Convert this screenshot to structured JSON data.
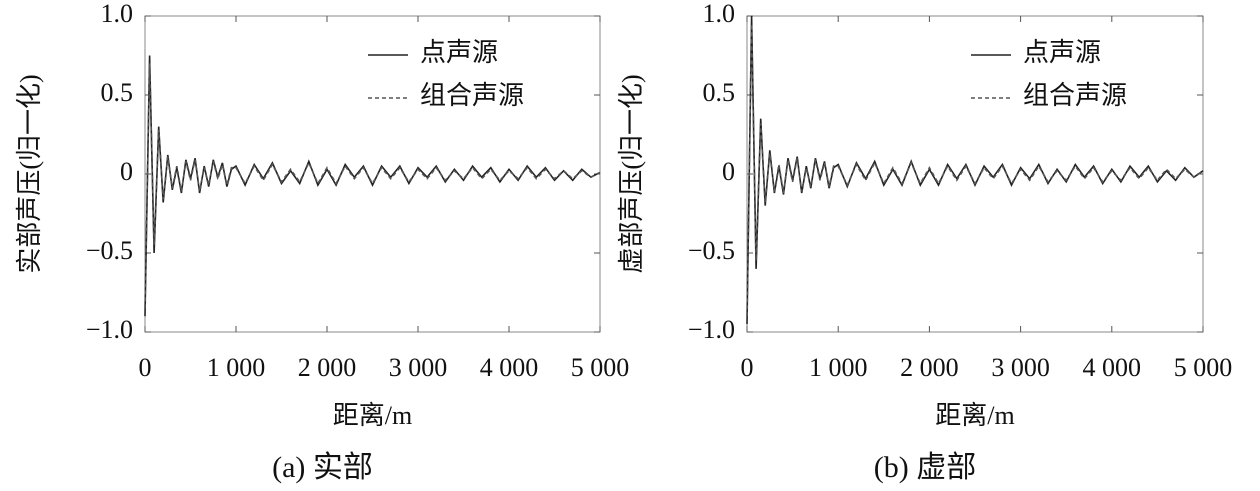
{
  "chart_data": [
    {
      "type": "line",
      "title": "(a) 实部",
      "xlabel": "距离/m",
      "ylabel": "实部声压(归一化)",
      "legend": "upper right",
      "x": [
        0,
        50,
        100,
        150,
        200,
        250,
        300,
        350,
        400,
        450,
        500,
        550,
        600,
        650,
        700,
        750,
        800,
        850,
        900,
        950,
        1000,
        1100,
        1200,
        1300,
        1400,
        1500,
        1600,
        1700,
        1800,
        1900,
        2000,
        2100,
        2200,
        2300,
        2400,
        2500,
        2600,
        2700,
        2800,
        2900,
        3000,
        3100,
        3200,
        3300,
        3400,
        3500,
        3600,
        3700,
        3800,
        3900,
        4000,
        4100,
        4200,
        4300,
        4400,
        4500,
        4600,
        4700,
        4800,
        4900,
        5000
      ],
      "series": [
        {
          "name": "点声源",
          "color": "#222222",
          "linestyle": "solid",
          "values": [
            -0.9,
            0.75,
            -0.5,
            0.3,
            -0.18,
            0.12,
            -0.1,
            0.04,
            -0.12,
            0.09,
            -0.03,
            0.1,
            -0.12,
            0.05,
            -0.08,
            0.09,
            -0.02,
            0.07,
            -0.08,
            0.03,
            0.05,
            -0.07,
            0.06,
            -0.03,
            0.07,
            -0.06,
            0.02,
            -0.06,
            0.08,
            -0.07,
            0.03,
            -0.07,
            0.06,
            -0.02,
            0.05,
            -0.07,
            0.05,
            -0.02,
            0.05,
            -0.06,
            0.04,
            -0.02,
            0.05,
            -0.05,
            0.03,
            -0.04,
            0.05,
            -0.02,
            0.04,
            -0.05,
            0.03,
            -0.04,
            0.05,
            -0.02,
            0.04,
            -0.04,
            0.02,
            -0.04,
            0.03,
            -0.02,
            0.01
          ]
        },
        {
          "name": "组合声源",
          "color": "#555555",
          "linestyle": "dashed",
          "values": [
            -0.85,
            0.7,
            -0.45,
            0.28,
            -0.16,
            0.11,
            -0.09,
            0.05,
            -0.11,
            0.08,
            -0.04,
            0.09,
            -0.11,
            0.04,
            -0.07,
            0.08,
            -0.03,
            0.06,
            -0.07,
            0.04,
            0.04,
            -0.06,
            0.05,
            -0.04,
            0.06,
            -0.05,
            0.03,
            -0.05,
            0.07,
            -0.06,
            0.04,
            -0.06,
            0.05,
            -0.03,
            0.04,
            -0.06,
            0.04,
            -0.03,
            0.04,
            -0.05,
            0.03,
            -0.03,
            0.04,
            -0.04,
            0.02,
            -0.03,
            0.04,
            -0.03,
            0.03,
            -0.04,
            0.02,
            -0.03,
            0.04,
            -0.03,
            0.03,
            -0.03,
            0.02,
            -0.03,
            0.02,
            -0.02,
            0.01
          ]
        }
      ],
      "xlim": [
        0,
        5000
      ],
      "xticks": [
        0,
        {
          "value": 1000,
          "label": "1 000"
        },
        {
          "value": 2000,
          "label": "2 000"
        },
        {
          "value": 3000,
          "label": "3 000"
        },
        {
          "value": 4000,
          "label": "4 000"
        },
        {
          "value": 5000,
          "label": "5 000"
        }
      ],
      "ylim": [
        -1,
        1
      ],
      "yticks": [
        {
          "value": -1,
          "label": "−1.0"
        },
        {
          "value": -0.5,
          "label": "−0.5"
        },
        0,
        {
          "value": 0.5,
          "label": "0.5"
        },
        {
          "value": 1,
          "label": "1.0"
        }
      ]
    },
    {
      "type": "line",
      "title": "(b) 虚部",
      "xlabel": "距离/m",
      "ylabel": "虚部声压(归一化)",
      "legend": "upper right",
      "x": [
        0,
        50,
        100,
        150,
        200,
        250,
        300,
        350,
        400,
        450,
        500,
        550,
        600,
        650,
        700,
        750,
        800,
        850,
        900,
        950,
        1000,
        1100,
        1200,
        1300,
        1400,
        1500,
        1600,
        1700,
        1800,
        1900,
        2000,
        2100,
        2200,
        2300,
        2400,
        2500,
        2600,
        2700,
        2800,
        2900,
        3000,
        3100,
        3200,
        3300,
        3400,
        3500,
        3600,
        3700,
        3800,
        3900,
        4000,
        4100,
        4200,
        4300,
        4400,
        4500,
        4600,
        4700,
        4800,
        4900,
        5000
      ],
      "series": [
        {
          "name": "点声源",
          "color": "#222222",
          "linestyle": "solid",
          "values": [
            -0.95,
            1.0,
            -0.6,
            0.35,
            -0.2,
            0.15,
            -0.12,
            0.05,
            -0.13,
            0.1,
            -0.04,
            0.11,
            -0.12,
            0.05,
            -0.09,
            0.1,
            -0.03,
            0.08,
            -0.09,
            0.04,
            0.06,
            -0.08,
            0.07,
            -0.03,
            0.08,
            -0.07,
            0.03,
            -0.07,
            0.08,
            -0.07,
            0.03,
            -0.07,
            0.06,
            -0.03,
            0.06,
            -0.07,
            0.05,
            -0.02,
            0.06,
            -0.07,
            0.04,
            -0.03,
            0.06,
            -0.06,
            0.03,
            -0.05,
            0.06,
            -0.02,
            0.05,
            -0.06,
            0.03,
            -0.05,
            0.05,
            -0.02,
            0.05,
            -0.05,
            0.02,
            -0.04,
            0.04,
            -0.02,
            0.02
          ]
        },
        {
          "name": "组合声源",
          "color": "#555555",
          "linestyle": "dashed",
          "values": [
            -0.9,
            0.95,
            -0.55,
            0.32,
            -0.18,
            0.13,
            -0.11,
            0.06,
            -0.12,
            0.09,
            -0.05,
            0.1,
            -0.11,
            0.04,
            -0.08,
            0.09,
            -0.04,
            0.07,
            -0.08,
            0.05,
            0.05,
            -0.07,
            0.06,
            -0.04,
            0.07,
            -0.06,
            0.04,
            -0.06,
            0.07,
            -0.06,
            0.04,
            -0.06,
            0.05,
            -0.04,
            0.05,
            -0.06,
            0.04,
            -0.03,
            0.05,
            -0.06,
            0.03,
            -0.04,
            0.05,
            -0.05,
            0.02,
            -0.04,
            0.05,
            -0.03,
            0.04,
            -0.05,
            0.02,
            -0.04,
            0.04,
            -0.03,
            0.04,
            -0.04,
            0.03,
            -0.03,
            0.03,
            -0.02,
            0.02
          ]
        }
      ],
      "xlim": [
        0,
        5000
      ],
      "xticks": [
        0,
        {
          "value": 1000,
          "label": "1 000"
        },
        {
          "value": 2000,
          "label": "2 000"
        },
        {
          "value": 3000,
          "label": "3 000"
        },
        {
          "value": 4000,
          "label": "4 000"
        },
        {
          "value": 5000,
          "label": "5 000"
        }
      ],
      "ylim": [
        -1,
        1
      ],
      "yticks": [
        {
          "value": -1,
          "label": "−1.0"
        },
        {
          "value": -0.5,
          "label": "−0.5"
        },
        0,
        {
          "value": 0.5,
          "label": "0.5"
        },
        {
          "value": 1,
          "label": "1.0"
        }
      ]
    }
  ]
}
